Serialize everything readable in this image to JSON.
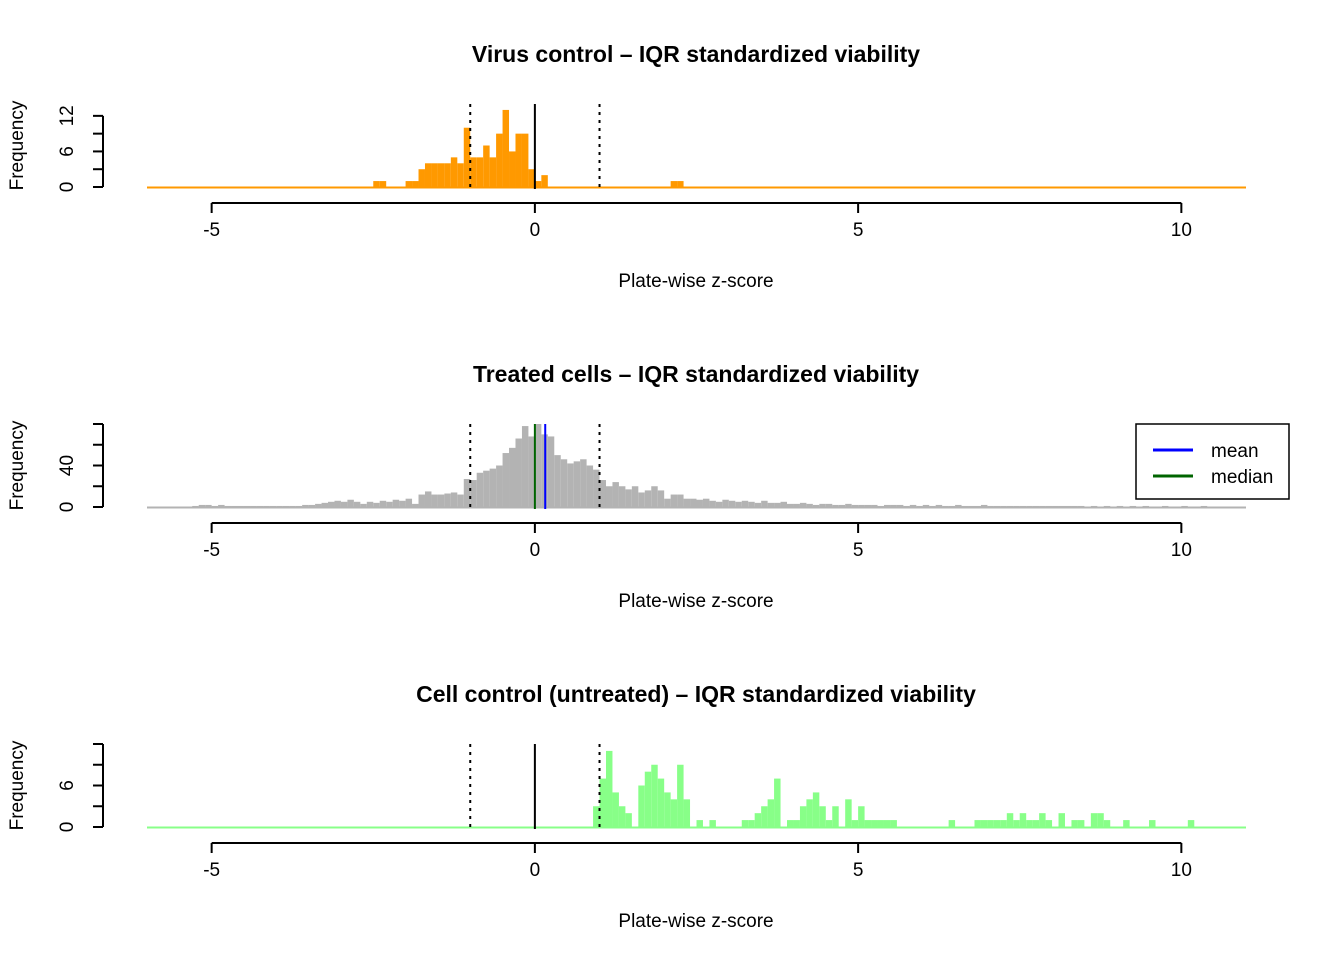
{
  "chart_data": [
    {
      "type": "bar",
      "panel": "virus",
      "title": "Virus control – IQR standardized viability",
      "xlabel": "Plate-wise z-score",
      "ylabel": "Frequency",
      "xlim": [
        -6,
        11
      ],
      "x_ticks": [
        "-5",
        "0",
        "5",
        "10"
      ],
      "ylim": [
        0,
        14
      ],
      "y_ticks": [
        "0",
        "6",
        "12"
      ],
      "bar_color": "#ff9900",
      "bin_width": 0.1,
      "bins": [
        {
          "x": -2.5,
          "y": 1
        },
        {
          "x": -2.4,
          "y": 1
        },
        {
          "x": -2.0,
          "y": 1
        },
        {
          "x": -1.9,
          "y": 1
        },
        {
          "x": -1.8,
          "y": 3
        },
        {
          "x": -1.7,
          "y": 4
        },
        {
          "x": -1.6,
          "y": 4
        },
        {
          "x": -1.5,
          "y": 4
        },
        {
          "x": -1.4,
          "y": 4
        },
        {
          "x": -1.3,
          "y": 5
        },
        {
          "x": -1.2,
          "y": 4
        },
        {
          "x": -1.1,
          "y": 10
        },
        {
          "x": -1.0,
          "y": 5
        },
        {
          "x": -0.9,
          "y": 5
        },
        {
          "x": -0.8,
          "y": 7
        },
        {
          "x": -0.7,
          "y": 5
        },
        {
          "x": -0.6,
          "y": 9
        },
        {
          "x": -0.5,
          "y": 13
        },
        {
          "x": -0.4,
          "y": 6
        },
        {
          "x": -0.3,
          "y": 9
        },
        {
          "x": -0.2,
          "y": 9
        },
        {
          "x": -0.1,
          "y": 3
        },
        {
          "x": 0.0,
          "y": 1
        },
        {
          "x": 0.1,
          "y": 2
        },
        {
          "x": 2.1,
          "y": 1
        },
        {
          "x": 2.2,
          "y": 1
        }
      ],
      "vlines": [
        {
          "x": 0,
          "style": "solid",
          "color": "#000000"
        },
        {
          "x": -1,
          "style": "dotted",
          "color": "#000000"
        },
        {
          "x": 1,
          "style": "dotted",
          "color": "#000000"
        }
      ]
    },
    {
      "type": "bar",
      "panel": "treated",
      "title": "Treated cells – IQR standardized viability",
      "xlabel": "Plate-wise z-score",
      "ylabel": "Frequency",
      "xlim": [
        -6,
        11
      ],
      "x_ticks": [
        "-5",
        "0",
        "5",
        "10"
      ],
      "ylim": [
        0,
        80
      ],
      "y_ticks": [
        "0",
        "40"
      ],
      "bar_color": "#b3b3b3",
      "bin_width": 0.1,
      "bins": [
        {
          "x": -5.3,
          "y": 1
        },
        {
          "x": -5.2,
          "y": 2
        },
        {
          "x": -5.1,
          "y": 2
        },
        {
          "x": -5.0,
          "y": 1
        },
        {
          "x": -4.9,
          "y": 2
        },
        {
          "x": -4.8,
          "y": 1
        },
        {
          "x": -4.7,
          "y": 1
        },
        {
          "x": -4.6,
          "y": 1
        },
        {
          "x": -4.5,
          "y": 1
        },
        {
          "x": -4.4,
          "y": 1
        },
        {
          "x": -4.3,
          "y": 1
        },
        {
          "x": -4.2,
          "y": 1
        },
        {
          "x": -4.1,
          "y": 1
        },
        {
          "x": -4.0,
          "y": 1
        },
        {
          "x": -3.9,
          "y": 1
        },
        {
          "x": -3.8,
          "y": 1
        },
        {
          "x": -3.7,
          "y": 1
        },
        {
          "x": -3.6,
          "y": 2
        },
        {
          "x": -3.5,
          "y": 2
        },
        {
          "x": -3.4,
          "y": 3
        },
        {
          "x": -3.3,
          "y": 4
        },
        {
          "x": -3.2,
          "y": 5
        },
        {
          "x": -3.1,
          "y": 6
        },
        {
          "x": -3.0,
          "y": 5
        },
        {
          "x": -2.9,
          "y": 7
        },
        {
          "x": -2.8,
          "y": 5
        },
        {
          "x": -2.7,
          "y": 3
        },
        {
          "x": -2.6,
          "y": 5
        },
        {
          "x": -2.5,
          "y": 4
        },
        {
          "x": -2.4,
          "y": 6
        },
        {
          "x": -2.3,
          "y": 5
        },
        {
          "x": -2.2,
          "y": 7
        },
        {
          "x": -2.1,
          "y": 6
        },
        {
          "x": -2.0,
          "y": 8
        },
        {
          "x": -1.9,
          "y": 3
        },
        {
          "x": -1.8,
          "y": 12
        },
        {
          "x": -1.7,
          "y": 15
        },
        {
          "x": -1.6,
          "y": 12
        },
        {
          "x": -1.5,
          "y": 12
        },
        {
          "x": -1.4,
          "y": 13
        },
        {
          "x": -1.3,
          "y": 14
        },
        {
          "x": -1.2,
          "y": 12
        },
        {
          "x": -1.1,
          "y": 27
        },
        {
          "x": -1.0,
          "y": 26
        },
        {
          "x": -0.9,
          "y": 33
        },
        {
          "x": -0.8,
          "y": 35
        },
        {
          "x": -0.7,
          "y": 37
        },
        {
          "x": -0.6,
          "y": 40
        },
        {
          "x": -0.5,
          "y": 52
        },
        {
          "x": -0.4,
          "y": 57
        },
        {
          "x": -0.3,
          "y": 66
        },
        {
          "x": -0.2,
          "y": 78
        },
        {
          "x": -0.1,
          "y": 68
        },
        {
          "x": 0.0,
          "y": 80
        },
        {
          "x": 0.1,
          "y": 70
        },
        {
          "x": 0.2,
          "y": 68
        },
        {
          "x": 0.3,
          "y": 50
        },
        {
          "x": 0.4,
          "y": 46
        },
        {
          "x": 0.5,
          "y": 42
        },
        {
          "x": 0.6,
          "y": 44
        },
        {
          "x": 0.7,
          "y": 46
        },
        {
          "x": 0.8,
          "y": 40
        },
        {
          "x": 0.9,
          "y": 36
        },
        {
          "x": 1.0,
          "y": 26
        },
        {
          "x": 1.1,
          "y": 20
        },
        {
          "x": 1.2,
          "y": 24
        },
        {
          "x": 1.3,
          "y": 20
        },
        {
          "x": 1.4,
          "y": 17
        },
        {
          "x": 1.5,
          "y": 20
        },
        {
          "x": 1.6,
          "y": 14
        },
        {
          "x": 1.7,
          "y": 16
        },
        {
          "x": 1.8,
          "y": 20
        },
        {
          "x": 1.9,
          "y": 16
        },
        {
          "x": 2.0,
          "y": 8
        },
        {
          "x": 2.1,
          "y": 12
        },
        {
          "x": 2.2,
          "y": 12
        },
        {
          "x": 2.3,
          "y": 8
        },
        {
          "x": 2.4,
          "y": 8
        },
        {
          "x": 2.5,
          "y": 7
        },
        {
          "x": 2.6,
          "y": 8
        },
        {
          "x": 2.7,
          "y": 6
        },
        {
          "x": 2.8,
          "y": 5
        },
        {
          "x": 2.9,
          "y": 7
        },
        {
          "x": 3.0,
          "y": 6
        },
        {
          "x": 3.1,
          "y": 5
        },
        {
          "x": 3.2,
          "y": 6
        },
        {
          "x": 3.3,
          "y": 5
        },
        {
          "x": 3.4,
          "y": 4
        },
        {
          "x": 3.5,
          "y": 6
        },
        {
          "x": 3.6,
          "y": 4
        },
        {
          "x": 3.7,
          "y": 4
        },
        {
          "x": 3.8,
          "y": 5
        },
        {
          "x": 3.9,
          "y": 3
        },
        {
          "x": 4.0,
          "y": 3
        },
        {
          "x": 4.1,
          "y": 4
        },
        {
          "x": 4.2,
          "y": 3
        },
        {
          "x": 4.3,
          "y": 2
        },
        {
          "x": 4.4,
          "y": 3
        },
        {
          "x": 4.5,
          "y": 3
        },
        {
          "x": 4.6,
          "y": 2
        },
        {
          "x": 4.7,
          "y": 2
        },
        {
          "x": 4.8,
          "y": 3
        },
        {
          "x": 4.9,
          "y": 2
        },
        {
          "x": 5.0,
          "y": 2
        },
        {
          "x": 5.1,
          "y": 2
        },
        {
          "x": 5.2,
          "y": 2
        },
        {
          "x": 5.3,
          "y": 1
        },
        {
          "x": 5.4,
          "y": 2
        },
        {
          "x": 5.5,
          "y": 2
        },
        {
          "x": 5.6,
          "y": 2
        },
        {
          "x": 5.7,
          "y": 1
        },
        {
          "x": 5.8,
          "y": 2
        },
        {
          "x": 5.9,
          "y": 1
        },
        {
          "x": 6.0,
          "y": 2
        },
        {
          "x": 6.1,
          "y": 1
        },
        {
          "x": 6.2,
          "y": 2
        },
        {
          "x": 6.3,
          "y": 1
        },
        {
          "x": 6.4,
          "y": 1
        },
        {
          "x": 6.5,
          "y": 2
        },
        {
          "x": 6.6,
          "y": 1
        },
        {
          "x": 6.7,
          "y": 1
        },
        {
          "x": 6.8,
          "y": 1
        },
        {
          "x": 6.9,
          "y": 2
        },
        {
          "x": 7.0,
          "y": 1
        },
        {
          "x": 7.1,
          "y": 1
        },
        {
          "x": 7.2,
          "y": 1
        },
        {
          "x": 7.3,
          "y": 1
        },
        {
          "x": 7.4,
          "y": 1
        },
        {
          "x": 7.5,
          "y": 1
        },
        {
          "x": 7.6,
          "y": 1
        },
        {
          "x": 7.7,
          "y": 1
        },
        {
          "x": 7.8,
          "y": 1
        },
        {
          "x": 7.9,
          "y": 1
        },
        {
          "x": 8.0,
          "y": 1
        },
        {
          "x": 8.1,
          "y": 1
        },
        {
          "x": 8.2,
          "y": 1
        },
        {
          "x": 8.3,
          "y": 1
        },
        {
          "x": 8.4,
          "y": 1
        },
        {
          "x": 8.6,
          "y": 1
        },
        {
          "x": 8.8,
          "y": 1
        },
        {
          "x": 9.0,
          "y": 1
        },
        {
          "x": 9.2,
          "y": 1
        },
        {
          "x": 9.4,
          "y": 1
        },
        {
          "x": 9.7,
          "y": 1
        },
        {
          "x": 10.0,
          "y": 1
        },
        {
          "x": 10.3,
          "y": 1
        }
      ],
      "vlines": [
        {
          "x": 0,
          "style": "solid",
          "color": "#006400"
        },
        {
          "x": 0.16,
          "style": "solid",
          "color": "#0000ff"
        },
        {
          "x": -1,
          "style": "dotted",
          "color": "#000000"
        },
        {
          "x": 1,
          "style": "dotted",
          "color": "#000000"
        }
      ],
      "legend": {
        "position": "right",
        "items": [
          {
            "label": "mean",
            "color": "#0000ff"
          },
          {
            "label": "median",
            "color": "#006400"
          }
        ]
      }
    },
    {
      "type": "bar",
      "panel": "cell",
      "title": "Cell control (untreated) – IQR standardized viability",
      "xlabel": "Plate-wise z-score",
      "ylabel": "Frequency",
      "xlim": [
        -6,
        11
      ],
      "x_ticks": [
        "-5",
        "0",
        "5",
        "10"
      ],
      "ylim": [
        0,
        12
      ],
      "y_ticks": [
        "0",
        "6"
      ],
      "bar_color": "#88ff88",
      "bin_width": 0.1,
      "bins": [
        {
          "x": 0.9,
          "y": 3
        },
        {
          "x": 1.0,
          "y": 7
        },
        {
          "x": 1.1,
          "y": 11
        },
        {
          "x": 1.2,
          "y": 5
        },
        {
          "x": 1.3,
          "y": 3
        },
        {
          "x": 1.4,
          "y": 2
        },
        {
          "x": 1.6,
          "y": 6
        },
        {
          "x": 1.7,
          "y": 8
        },
        {
          "x": 1.8,
          "y": 9
        },
        {
          "x": 1.9,
          "y": 7
        },
        {
          "x": 2.0,
          "y": 5
        },
        {
          "x": 2.1,
          "y": 4
        },
        {
          "x": 2.2,
          "y": 9
        },
        {
          "x": 2.3,
          "y": 4
        },
        {
          "x": 2.5,
          "y": 1
        },
        {
          "x": 2.7,
          "y": 1
        },
        {
          "x": 3.2,
          "y": 1
        },
        {
          "x": 3.3,
          "y": 1
        },
        {
          "x": 3.4,
          "y": 2
        },
        {
          "x": 3.5,
          "y": 3
        },
        {
          "x": 3.6,
          "y": 4
        },
        {
          "x": 3.7,
          "y": 7
        },
        {
          "x": 3.9,
          "y": 1
        },
        {
          "x": 4.0,
          "y": 1
        },
        {
          "x": 4.1,
          "y": 3
        },
        {
          "x": 4.2,
          "y": 4
        },
        {
          "x": 4.3,
          "y": 5
        },
        {
          "x": 4.4,
          "y": 3
        },
        {
          "x": 4.5,
          "y": 1
        },
        {
          "x": 4.6,
          "y": 3
        },
        {
          "x": 4.8,
          "y": 4
        },
        {
          "x": 4.9,
          "y": 1
        },
        {
          "x": 5.0,
          "y": 3
        },
        {
          "x": 5.1,
          "y": 1
        },
        {
          "x": 5.2,
          "y": 1
        },
        {
          "x": 5.3,
          "y": 1
        },
        {
          "x": 5.4,
          "y": 1
        },
        {
          "x": 5.5,
          "y": 1
        },
        {
          "x": 6.4,
          "y": 1
        },
        {
          "x": 6.8,
          "y": 1
        },
        {
          "x": 6.9,
          "y": 1
        },
        {
          "x": 7.0,
          "y": 1
        },
        {
          "x": 7.1,
          "y": 1
        },
        {
          "x": 7.2,
          "y": 1
        },
        {
          "x": 7.3,
          "y": 2
        },
        {
          "x": 7.4,
          "y": 1
        },
        {
          "x": 7.5,
          "y": 2
        },
        {
          "x": 7.6,
          "y": 1
        },
        {
          "x": 7.7,
          "y": 1
        },
        {
          "x": 7.8,
          "y": 2
        },
        {
          "x": 7.9,
          "y": 1
        },
        {
          "x": 8.1,
          "y": 2
        },
        {
          "x": 8.3,
          "y": 1
        },
        {
          "x": 8.4,
          "y": 1
        },
        {
          "x": 8.6,
          "y": 2
        },
        {
          "x": 8.7,
          "y": 2
        },
        {
          "x": 8.8,
          "y": 1
        },
        {
          "x": 9.1,
          "y": 1
        },
        {
          "x": 9.5,
          "y": 1
        },
        {
          "x": 10.1,
          "y": 1
        }
      ],
      "vlines": [
        {
          "x": 0,
          "style": "solid",
          "color": "#000000"
        },
        {
          "x": -1,
          "style": "dotted",
          "color": "#000000"
        },
        {
          "x": 1,
          "style": "dotted",
          "color": "#000000"
        }
      ]
    }
  ]
}
